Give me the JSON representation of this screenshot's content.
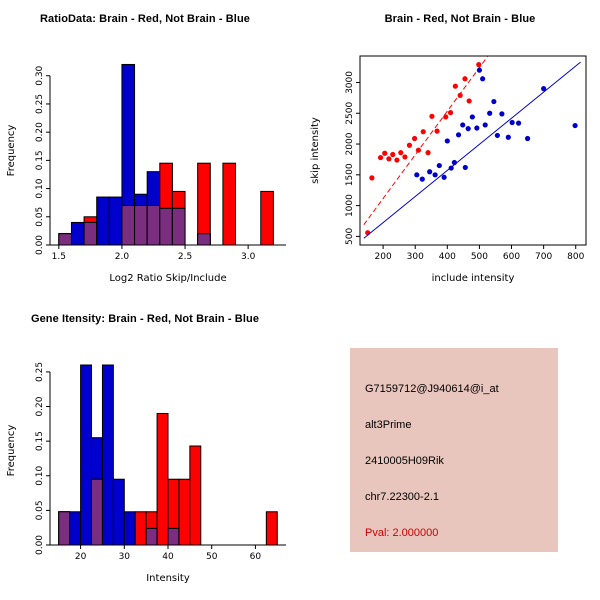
{
  "colors": {
    "red": "#FF0000",
    "blue": "#0000CC",
    "overlap": "#7B2D80",
    "axis": "#000000"
  },
  "chart_data": [
    {
      "id": "ratio-histogram",
      "type": "bar",
      "title": "RatioData: Brain - Red, Not Brain - Blue",
      "xlabel": "Log2 Ratio Skip/Include",
      "ylabel": "Frequency",
      "xlim": [
        1.43,
        3.3
      ],
      "ylim": [
        0,
        0.335
      ],
      "xticks": [
        1.5,
        2.0,
        2.5,
        3.0
      ],
      "xtick_labels": [
        "1.5",
        "2.0",
        "2.5",
        "3.0"
      ],
      "yticks": [
        0,
        0.05,
        0.1,
        0.15,
        0.2,
        0.25,
        0.3
      ],
      "ytick_labels": [
        "0.00",
        "0.05",
        "0.10",
        "0.15",
        "0.20",
        "0.25",
        "0.30"
      ],
      "bin_start": 1.5,
      "bin_width": 0.1,
      "series": [
        {
          "name": "Not Brain",
          "color_key": "blue",
          "values": [
            0.02,
            0.04,
            0.04,
            0.085,
            0.085,
            0.32,
            0.09,
            0.13,
            0.065,
            0.065,
            0,
            0.02,
            0,
            0,
            0,
            0,
            0
          ]
        },
        {
          "name": "Brain",
          "color_key": "red",
          "values": [
            0.02,
            0,
            0.05,
            0,
            0,
            0.07,
            0.07,
            0.07,
            0.145,
            0.095,
            0,
            0.145,
            0,
            0.145,
            0,
            0,
            0.095
          ]
        }
      ]
    },
    {
      "id": "intensity-scatter",
      "type": "scatter",
      "title": "Brain - Red, Not Brain - Blue",
      "xlabel": "include intensity",
      "ylabel": "skip intensity",
      "xlim": [
        128,
        832
      ],
      "ylim": [
        360,
        3430
      ],
      "xticks": [
        200,
        300,
        400,
        500,
        600,
        700,
        800
      ],
      "xtick_labels": [
        "200",
        "300",
        "400",
        "500",
        "600",
        "700",
        "800"
      ],
      "yticks": [
        500,
        1000,
        1500,
        2000,
        2500,
        3000
      ],
      "ytick_labels": [
        "500",
        "1000",
        "1500",
        "2000",
        "2500",
        "3000"
      ],
      "series": [
        {
          "name": "Brain",
          "color_key": "red",
          "line": {
            "x": [
              140,
              525
            ],
            "y": [
              690,
              3420
            ],
            "dashed": true
          },
          "points": [
            [
              152,
              560
            ],
            [
              165,
              1450
            ],
            [
              192,
              1780
            ],
            [
              205,
              1850
            ],
            [
              218,
              1760
            ],
            [
              230,
              1830
            ],
            [
              243,
              1740
            ],
            [
              255,
              1860
            ],
            [
              268,
              1790
            ],
            [
              282,
              1980
            ],
            [
              298,
              2090
            ],
            [
              310,
              1900
            ],
            [
              325,
              2200
            ],
            [
              340,
              1860
            ],
            [
              352,
              2450
            ],
            [
              368,
              2210
            ],
            [
              395,
              2440
            ],
            [
              410,
              2510
            ],
            [
              425,
              2940
            ],
            [
              440,
              2790
            ],
            [
              455,
              3060
            ],
            [
              468,
              2700
            ],
            [
              498,
              3290
            ]
          ]
        },
        {
          "name": "Not Brain",
          "color_key": "blue",
          "line": {
            "x": [
              140,
              815
            ],
            "y": [
              470,
              3330
            ],
            "dashed": false
          },
          "points": [
            [
              305,
              1500
            ],
            [
              322,
              1430
            ],
            [
              345,
              1550
            ],
            [
              362,
              1500
            ],
            [
              375,
              1650
            ],
            [
              390,
              1460
            ],
            [
              400,
              2050
            ],
            [
              412,
              1610
            ],
            [
              422,
              1700
            ],
            [
              435,
              2150
            ],
            [
              448,
              2310
            ],
            [
              456,
              1620
            ],
            [
              465,
              2250
            ],
            [
              478,
              2440
            ],
            [
              492,
              2260
            ],
            [
              500,
              3200
            ],
            [
              510,
              3060
            ],
            [
              518,
              2310
            ],
            [
              532,
              2500
            ],
            [
              545,
              2690
            ],
            [
              556,
              2140
            ],
            [
              570,
              2490
            ],
            [
              590,
              2110
            ],
            [
              602,
              2350
            ],
            [
              622,
              2340
            ],
            [
              650,
              2090
            ],
            [
              700,
              2900
            ],
            [
              798,
              2300
            ]
          ]
        }
      ]
    },
    {
      "id": "gene-intensity-histogram",
      "type": "bar",
      "title": "Gene Itensity: Brain - Red, Not Brain - Blue",
      "xlabel": "Intensity",
      "ylabel": "Frequency",
      "xlim": [
        13,
        67
      ],
      "ylim": [
        0,
        0.273
      ],
      "xticks": [
        20,
        30,
        40,
        50,
        60
      ],
      "xtick_labels": [
        "20",
        "30",
        "40",
        "50",
        "60"
      ],
      "yticks": [
        0,
        0.05,
        0.1,
        0.15,
        0.2,
        0.25
      ],
      "ytick_labels": [
        "0.00",
        "0.05",
        "0.10",
        "0.15",
        "0.20",
        "0.25"
      ],
      "bin_start": 15,
      "bin_width": 2.5,
      "series": [
        {
          "name": "Not Brain",
          "color_key": "blue",
          "values": [
            0.048,
            0.048,
            0.26,
            0.155,
            0.26,
            0.095,
            0.048,
            0,
            0.024,
            0,
            0.024,
            0,
            0,
            0,
            0,
            0,
            0,
            0,
            0,
            0
          ]
        },
        {
          "name": "Brain",
          "color_key": "red",
          "values": [
            0.048,
            0,
            0,
            0.095,
            0,
            0,
            0,
            0.048,
            0.048,
            0.19,
            0.095,
            0.095,
            0.143,
            0,
            0,
            0,
            0,
            0,
            0,
            0.048
          ]
        }
      ]
    }
  ],
  "info_box": {
    "bg": "#E9C6BD",
    "lines": [
      "G7159712@J940614@i_at",
      "alt3Prime",
      "2410005H09Rik",
      "chr7.22300-2.1"
    ],
    "pval": "Pval: 2.000000",
    "pval_color": "#CC0000"
  }
}
